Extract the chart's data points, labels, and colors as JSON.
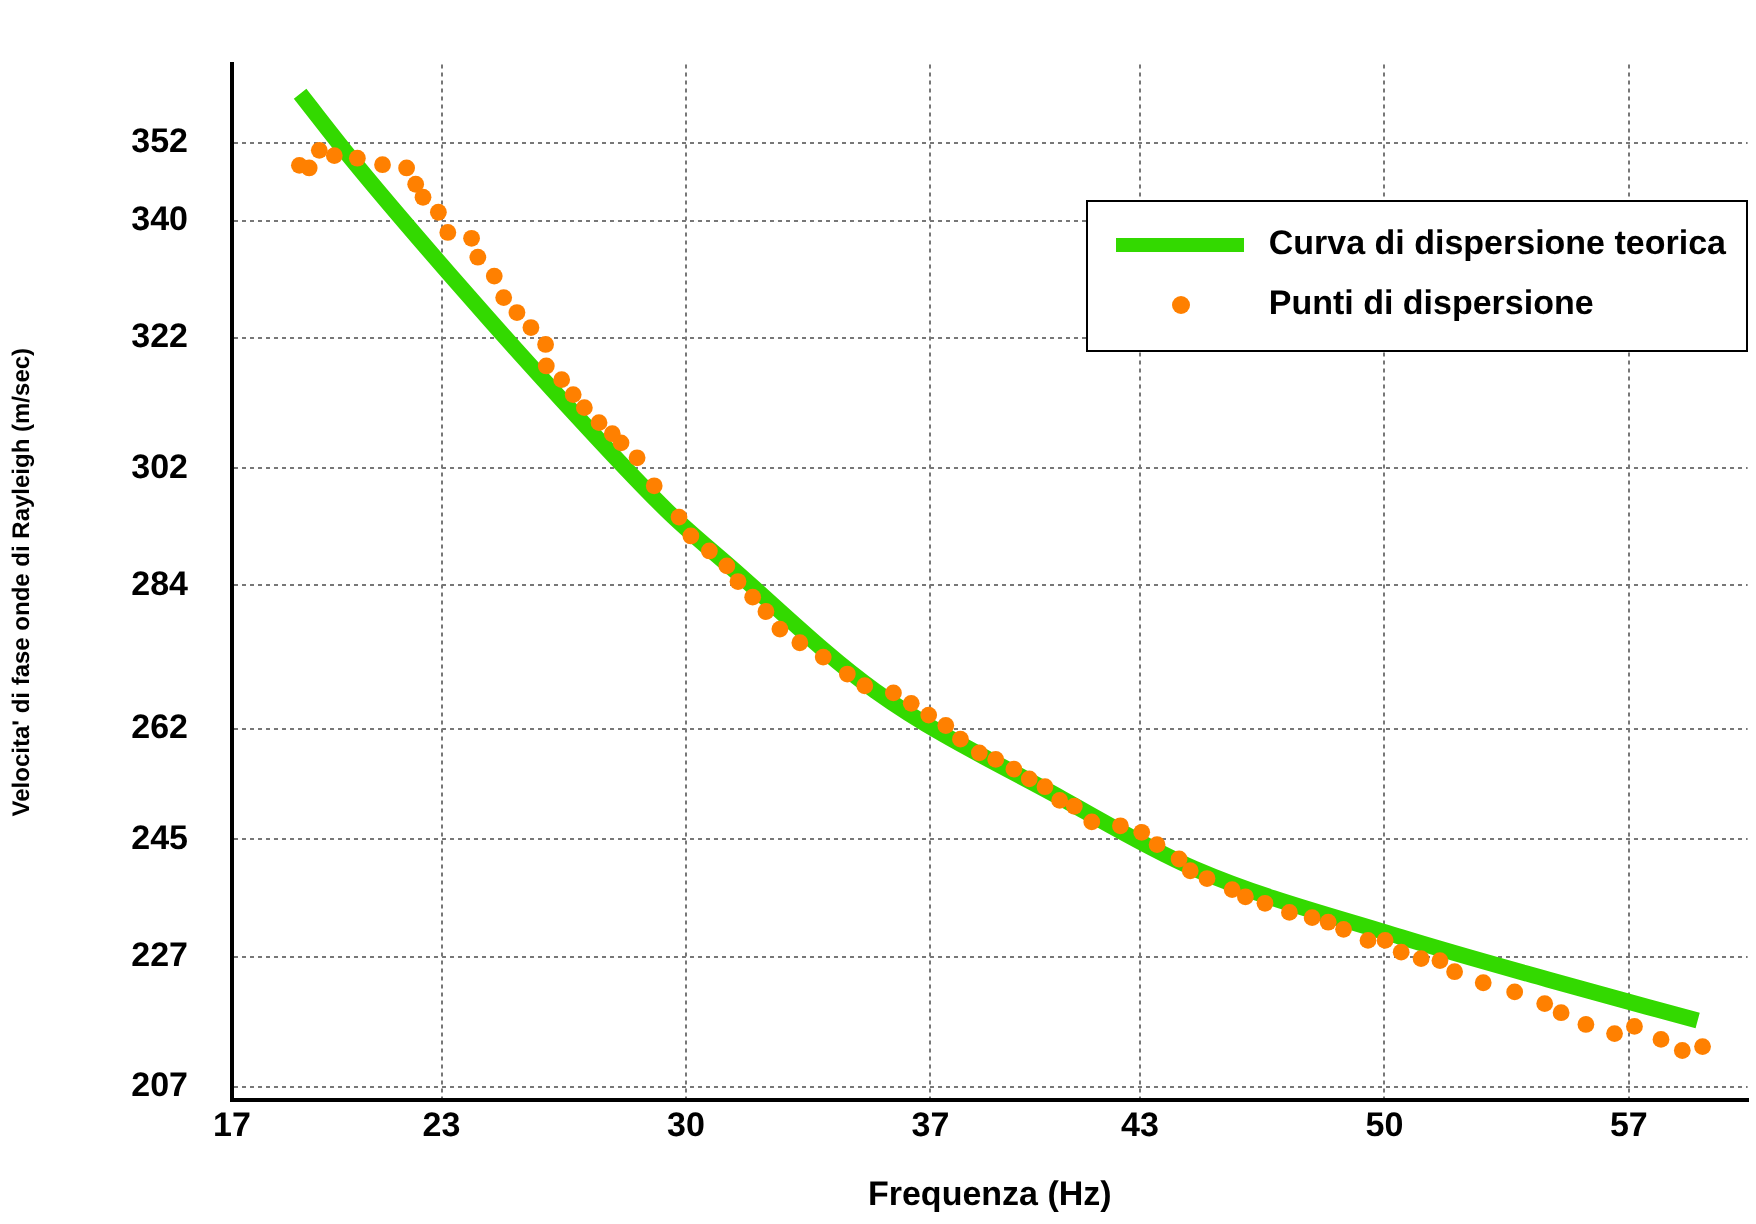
{
  "chart_data": {
    "type": "scatter",
    "xlabel": "Frequenza (Hz)",
    "ylabel": "Velocita' di fase onde di Rayleigh (m/sec)",
    "xlim": [
      17,
      60.4
    ],
    "ylim": [
      205,
      364
    ],
    "xticks": [
      17,
      23,
      30,
      37,
      43,
      50,
      57
    ],
    "yticks": [
      207,
      227,
      245,
      262,
      284,
      302,
      322,
      340,
      352
    ],
    "grid": true,
    "legend": "top right",
    "series": [
      {
        "name": "Curva di dispersione teorica",
        "type": "line",
        "color": "#33d900",
        "marker": "none",
        "line_style": "solid",
        "x": [
          18.95,
          20.45,
          23.6,
          26.46,
          29.51,
          31.22,
          35.42,
          40.76,
          44.57,
          50.48,
          54.68,
          58.97
        ],
        "values": [
          359.5,
          349.3,
          329.5,
          312.4,
          295.2,
          287.1,
          267.8,
          251.3,
          240.5,
          230.0,
          223.5,
          217.2
        ]
      },
      {
        "name": "Punti di dispersione",
        "color": "#ff8000",
        "marker": "circle",
        "x": [
          18.93,
          19.21,
          19.5,
          19.93,
          20.59,
          21.31,
          22.0,
          22.26,
          22.47,
          22.91,
          23.18,
          23.86,
          24.04,
          24.51,
          24.78,
          25.16,
          25.56,
          25.98,
          26.0,
          26.44,
          26.77,
          27.09,
          27.51,
          27.89,
          28.14,
          28.6,
          29.09,
          29.8,
          30.14,
          30.67,
          31.17,
          31.49,
          31.91,
          32.29,
          32.69,
          33.26,
          33.93,
          34.62,
          35.12,
          35.94,
          36.45,
          36.95,
          37.44,
          37.86,
          38.4,
          38.87,
          39.39,
          39.83,
          40.28,
          40.7,
          41.12,
          41.62,
          42.44,
          43.05,
          43.49,
          44.12,
          44.44,
          44.92,
          45.64,
          46.02,
          46.58,
          47.28,
          47.93,
          48.39,
          48.83,
          49.53,
          50.02,
          50.48,
          51.05,
          51.59,
          52.01,
          52.83,
          53.73,
          54.59,
          55.06,
          55.77,
          56.59,
          57.16,
          57.92,
          58.53,
          59.11
        ],
        "values": [
          348.5,
          348.1,
          350.8,
          350.0,
          349.6,
          348.6,
          348.1,
          345.6,
          343.6,
          341.3,
          338.2,
          337.3,
          334.4,
          331.5,
          328.2,
          325.9,
          323.6,
          321.0,
          317.7,
          315.6,
          313.3,
          311.3,
          309.0,
          307.3,
          305.9,
          303.6,
          299.3,
          294.5,
          291.6,
          289.3,
          287.0,
          284.6,
          282.2,
          280.0,
          277.3,
          275.2,
          273.0,
          270.4,
          268.6,
          267.5,
          265.9,
          264.1,
          262.5,
          260.4,
          258.3,
          257.3,
          255.8,
          254.3,
          253.1,
          251.0,
          250.1,
          247.7,
          247.1,
          246.1,
          244.2,
          242.0,
          240.2,
          239.0,
          237.3,
          236.2,
          235.2,
          233.8,
          233.0,
          232.3,
          231.2,
          229.5,
          229.5,
          227.7,
          226.7,
          226.4,
          224.7,
          223.0,
          221.6,
          219.8,
          218.4,
          216.6,
          215.2,
          216.3,
          214.3,
          212.6,
          213.2
        ]
      }
    ]
  }
}
